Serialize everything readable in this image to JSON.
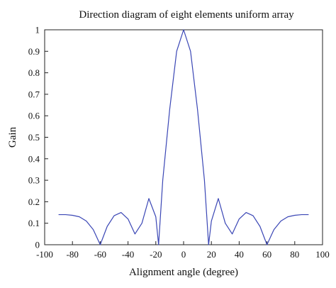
{
  "chart_data": {
    "type": "line",
    "title": "Direction diagram of eight elements uniform array",
    "xlabel": "Alignment angle (degree)",
    "ylabel": "Gain",
    "xlim": [
      -100,
      100
    ],
    "ylim": [
      0,
      1
    ],
    "grid": false,
    "legend": "none",
    "x_ticks": [
      "-100",
      "-80",
      "-60",
      "-40",
      "-20",
      "0",
      "20",
      "40",
      "60",
      "80",
      "100"
    ],
    "y_ticks": [
      "0",
      "0.1",
      "0.2",
      "0.3",
      "0.4",
      "0.5",
      "0.6",
      "0.7",
      "0.8",
      "0.9",
      "1"
    ],
    "series": [
      {
        "line_color": "#3a46b5",
        "x": [
          -90,
          -85,
          -80,
          -75,
          -70,
          -65,
          -60,
          -55,
          -50,
          -45,
          -40,
          -35,
          -30,
          -25,
          -20,
          -18,
          -15,
          -10,
          -5,
          0,
          5,
          10,
          15,
          18,
          20,
          25,
          30,
          35,
          40,
          45,
          50,
          55,
          60,
          65,
          70,
          75,
          80,
          85,
          90
        ],
        "y": [
          0.14,
          0.14,
          0.137,
          0.13,
          0.11,
          0.07,
          0.0,
          0.085,
          0.135,
          0.15,
          0.12,
          0.05,
          0.1,
          0.215,
          0.13,
          0.0,
          0.3,
          0.63,
          0.9,
          1.0,
          0.9,
          0.63,
          0.3,
          0.0,
          0.11,
          0.215,
          0.1,
          0.05,
          0.12,
          0.15,
          0.135,
          0.085,
          0.0,
          0.07,
          0.11,
          0.13,
          0.137,
          0.14,
          0.14
        ]
      }
    ]
  }
}
